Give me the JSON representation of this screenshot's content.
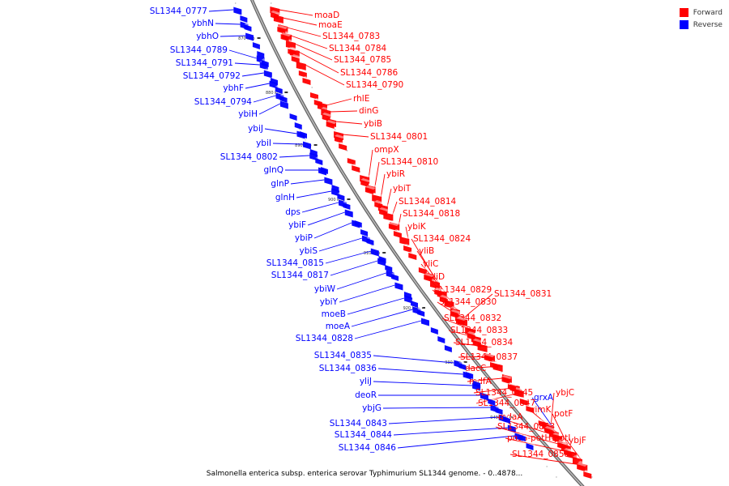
{
  "caption": "Salmonella enterica subsp. enterica serovar Typhimurium SL1344 genome. - 0..4878...",
  "legend": [
    {
      "label": "Forward",
      "color": "#ff0000"
    },
    {
      "label": "Reverse",
      "color": "#0000ff"
    }
  ],
  "colors": {
    "forward": "#ff0000",
    "reverse": "#0000ff",
    "backbone": "#888888"
  },
  "ticks": [
    "870 kbp",
    "880 kbp",
    "890 kbp",
    "900 kbp",
    "910 kbp",
    "920 kbp",
    "930 kbp",
    "940 kbp"
  ],
  "reverse_genes": [
    "SL1344_0777",
    "ybhN",
    "ybhO",
    "SL1344_0789",
    "SL1344_0791",
    "SL1344_0792",
    "ybhF",
    "SL1344_0794",
    "ybiH",
    "ybiJ",
    "ybiI",
    "SL1344_0802",
    "glnQ",
    "glnP",
    "glnH",
    "dps",
    "ybiF",
    "ybiP",
    "ybiS",
    "SL1344_0815",
    "SL1344_0817",
    "ybiW",
    "ybiY",
    "moeB",
    "moeA",
    "SL1344_0828",
    "SL1344_0835",
    "SL1344_0836",
    "yliJ",
    "deoR",
    "ybjG",
    "SL1344_0843",
    "SL1344_0844",
    "SL1344_0846"
  ],
  "forward_genes": [
    "moaD",
    "moaE",
    "SL1344_0783",
    "SL1344_0784",
    "SL1344_0785",
    "SL1344_0786",
    "SL1344_0790",
    "rhlE",
    "dinG",
    "ybiB",
    "SL1344_0801",
    "ompX",
    "SL1344_0810",
    "ybiR",
    "ybiT",
    "SL1344_0814",
    "SL1344_0818",
    "ybiK",
    "SL1344_0824",
    "yliB",
    "yliC",
    "yliD",
    "SL1344_0829",
    "SL1344_0831",
    "SL1344_0830",
    "SL1344_0832",
    "SL1344_0833",
    "SL1344_0834",
    "SL1344_0837",
    "dacC",
    "mdfA",
    "SL1344_0845",
    "ybjC",
    "grxA",
    "SL1344_0847",
    "rimK",
    "mdaA",
    "potF",
    "SL1344_0853",
    "potG-potH-potI",
    "ybjF",
    "SL1344_0858"
  ]
}
